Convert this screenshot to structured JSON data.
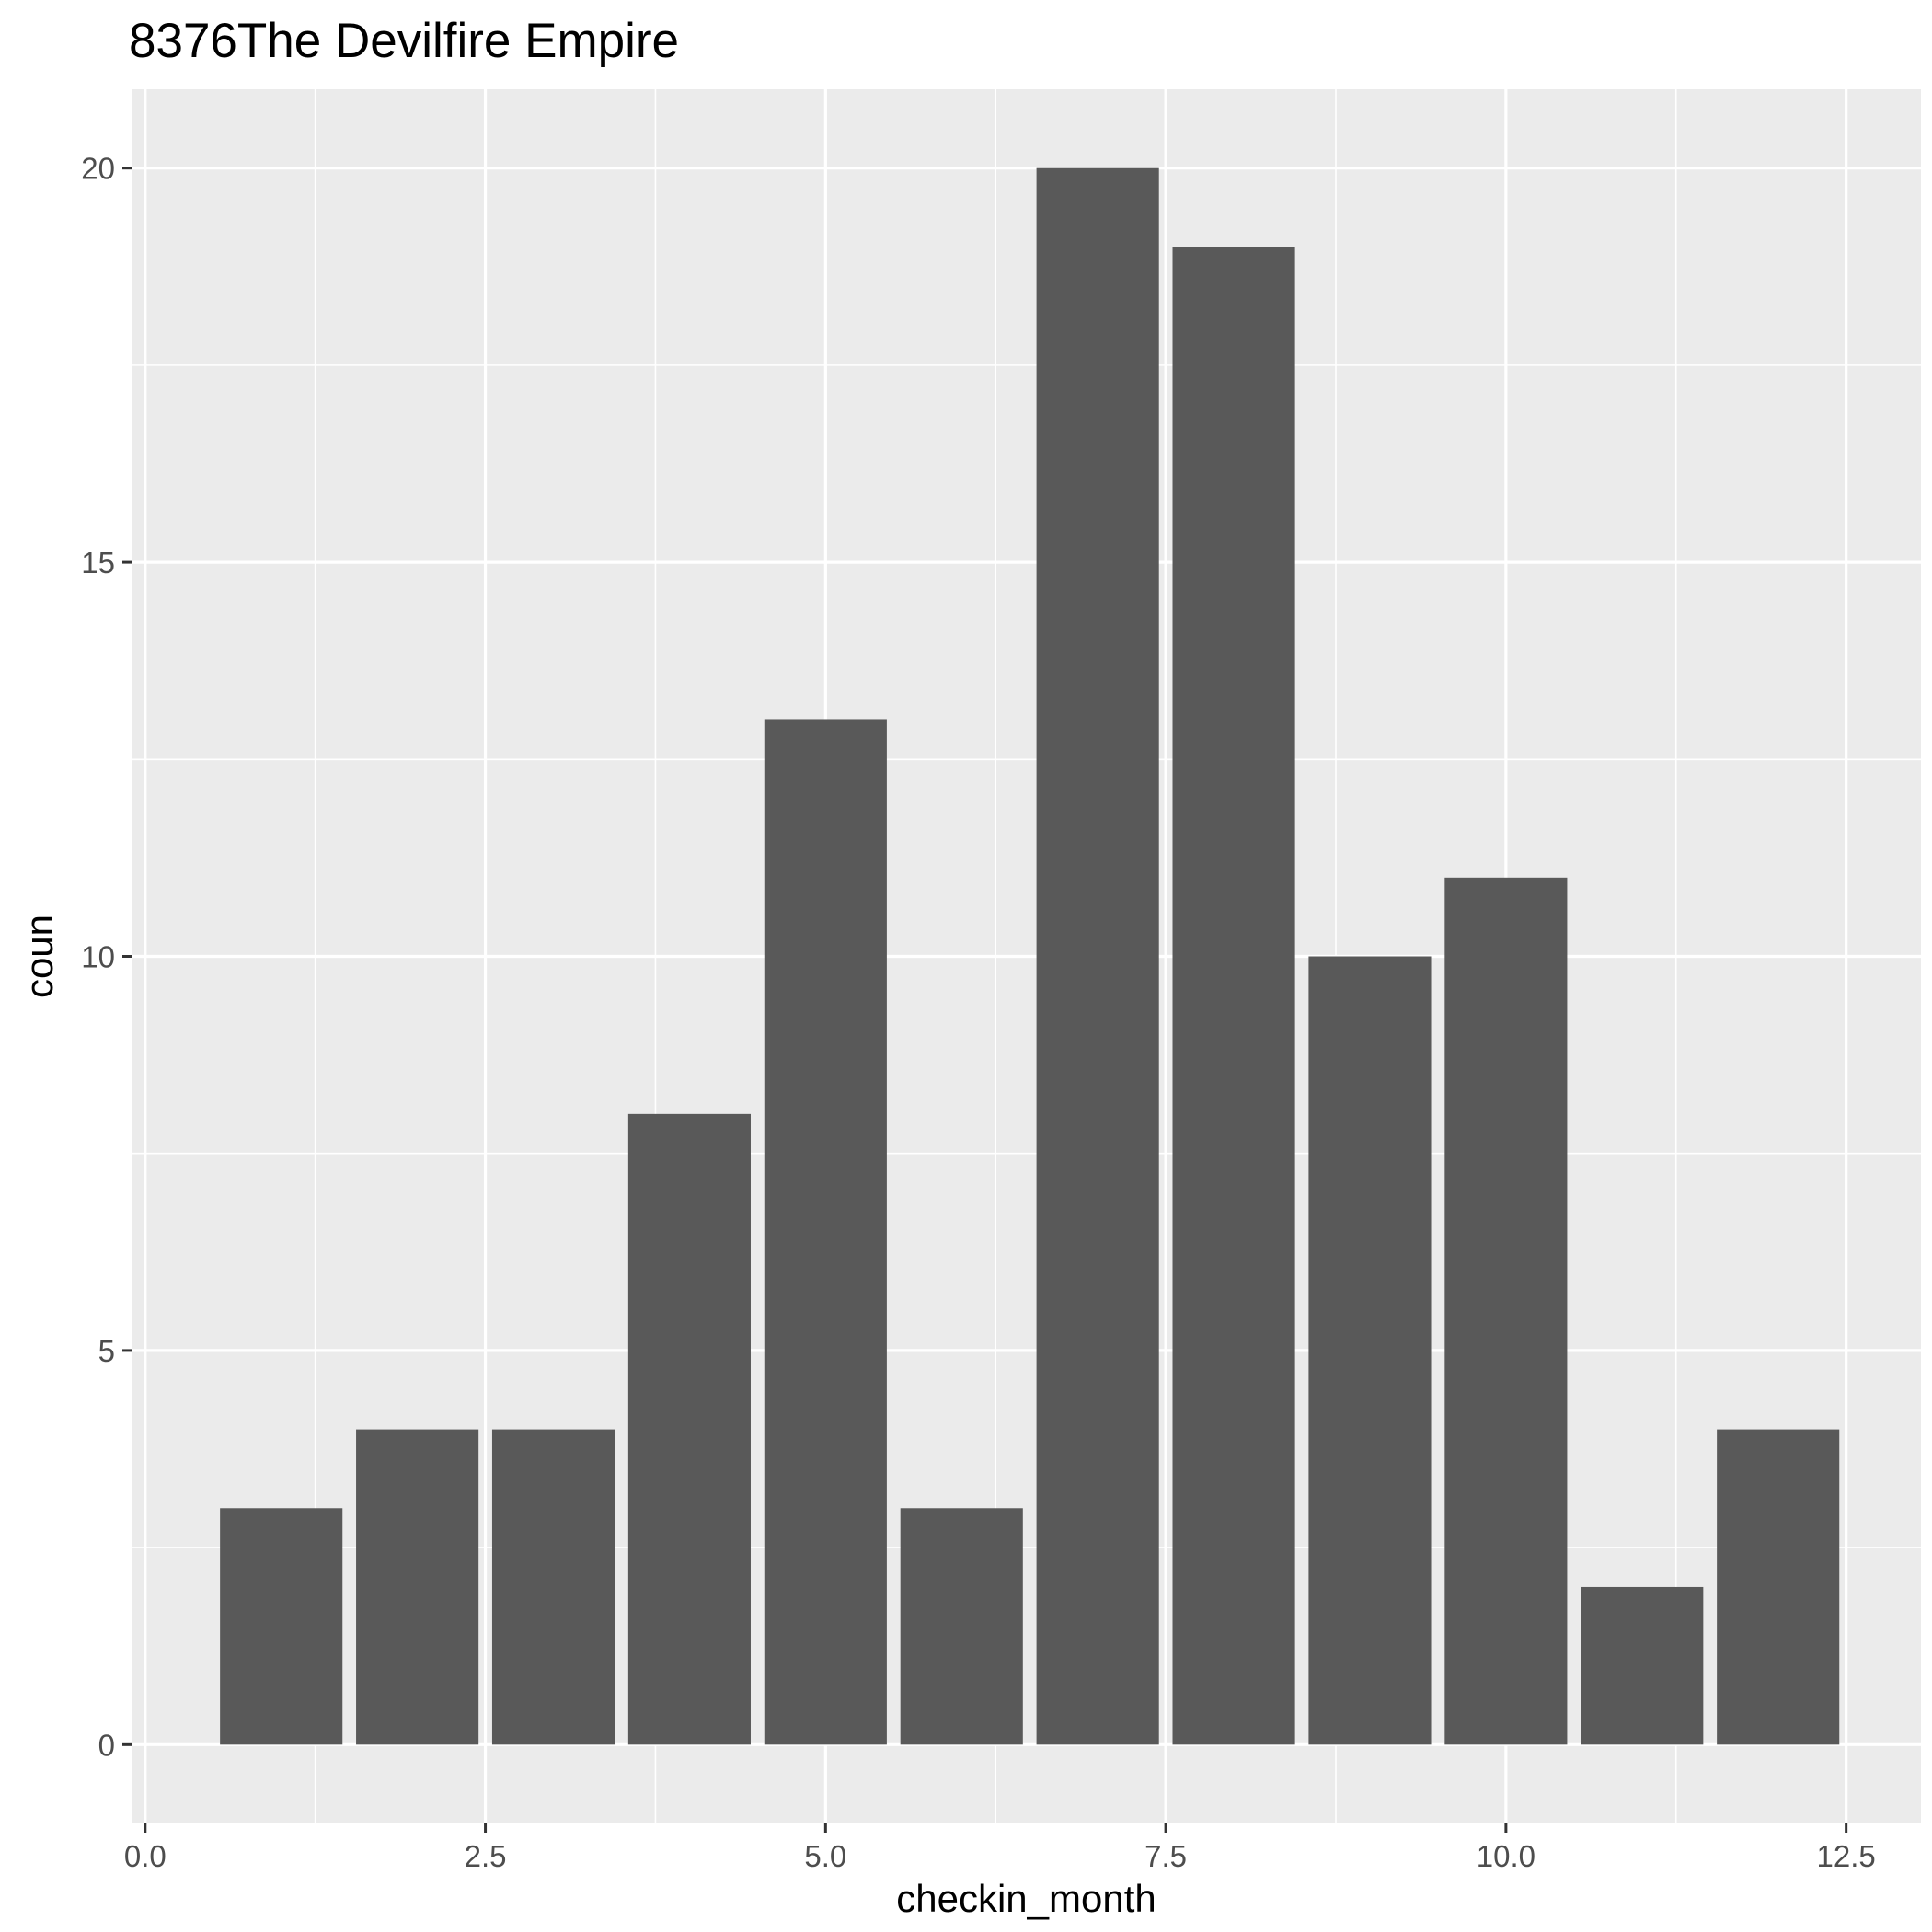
{
  "chart_data": {
    "type": "bar",
    "title": "8376The Devilfire Empire",
    "xlabel": "checkin_month",
    "ylabel": "coun",
    "x": [
      1,
      2,
      3,
      4,
      5,
      6,
      7,
      8,
      9,
      10,
      11,
      12
    ],
    "values": [
      3,
      4,
      4,
      8,
      13,
      3,
      20,
      19,
      10,
      11,
      2,
      4
    ],
    "bar_width": 0.9,
    "xlim": [
      -0.1,
      13.05
    ],
    "ylim": [
      -1,
      21
    ],
    "x_ticks": [
      0,
      2.5,
      5,
      7.5,
      10,
      12.5
    ],
    "x_tick_labels": [
      "0.0",
      "2.5",
      "5.0",
      "7.5",
      "10.0",
      "12.5"
    ],
    "y_ticks": [
      0,
      5,
      10,
      15,
      20
    ],
    "y_tick_labels": [
      "0",
      "5",
      "10",
      "15",
      "20"
    ],
    "grid": true,
    "legend": "none",
    "colors": {
      "panel_background": "#ebebeb",
      "grid_line": "#ffffff",
      "bar_fill": "#595959",
      "tick_mark": "#333333",
      "tick_text": "#4d4d4d",
      "text": "#000000"
    }
  }
}
